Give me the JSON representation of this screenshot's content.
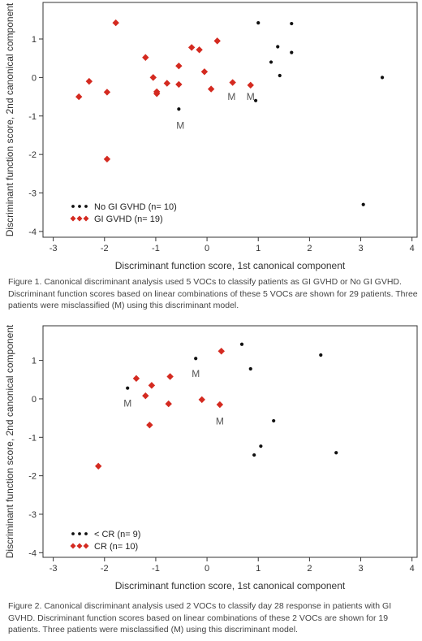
{
  "chart_data": [
    {
      "type": "scatter",
      "title": "",
      "xlabel": "Discriminant function score, 1st canonical component",
      "ylabel": "Discriminant function score, 2nd canonical component",
      "xlim": [
        -3.2,
        4.1
      ],
      "ylim": [
        -4.15,
        1.95
      ],
      "xticks": [
        -3,
        -2,
        -1,
        0,
        1,
        2,
        3,
        4
      ],
      "yticks": [
        -4,
        -3,
        -2,
        -1,
        0,
        1
      ],
      "grid": false,
      "legend_position": "bottom-left",
      "series": [
        {
          "name": "No GI GVHD (n= 10)",
          "marker": "dot",
          "color": "#111111",
          "points": [
            [
              1.0,
              1.42
            ],
            [
              1.65,
              1.4
            ],
            [
              1.38,
              0.8
            ],
            [
              1.65,
              0.65
            ],
            [
              1.25,
              0.4
            ],
            [
              1.42,
              0.05
            ],
            [
              0.95,
              -0.6
            ],
            [
              3.42,
              0.0
            ],
            [
              -0.55,
              -0.82
            ],
            [
              3.05,
              -3.3
            ]
          ]
        },
        {
          "name": "GI GVHD (n= 19)",
          "marker": "diamond",
          "color": "#d42a20",
          "points": [
            [
              -1.78,
              1.42
            ],
            [
              -2.5,
              -0.5
            ],
            [
              -2.3,
              -0.1
            ],
            [
              -1.95,
              -0.38
            ],
            [
              -1.95,
              -2.12
            ],
            [
              -1.2,
              0.52
            ],
            [
              -1.05,
              0.0
            ],
            [
              -0.98,
              -0.37
            ],
            [
              -0.98,
              -0.42
            ],
            [
              -0.78,
              -0.15
            ],
            [
              -0.55,
              -0.18
            ],
            [
              -0.55,
              0.3
            ],
            [
              -0.3,
              0.78
            ],
            [
              -0.15,
              0.72
            ],
            [
              -0.05,
              0.15
            ],
            [
              0.08,
              -0.3
            ],
            [
              0.2,
              0.95
            ],
            [
              0.5,
              -0.13
            ],
            [
              0.85,
              -0.2
            ]
          ]
        }
      ],
      "annotations": [
        {
          "text": "M",
          "x": -0.52,
          "y": -1.25
        },
        {
          "text": "M",
          "x": 0.48,
          "y": -0.5
        },
        {
          "text": "M",
          "x": 0.85,
          "y": -0.5
        }
      ]
    },
    {
      "type": "scatter",
      "title": "",
      "xlabel": "Discriminant function score, 1st canonical component",
      "ylabel": "Discriminant function score, 2nd canonical component",
      "xlim": [
        -3.2,
        4.1
      ],
      "ylim": [
        -4.12,
        1.9
      ],
      "xticks": [
        -3,
        -2,
        -1,
        0,
        1,
        2,
        3,
        4
      ],
      "yticks": [
        -4,
        -3,
        -2,
        -1,
        0,
        1
      ],
      "grid": false,
      "legend_position": "bottom-left",
      "series": [
        {
          "name": "< CR (n= 9)",
          "marker": "dot",
          "color": "#111111",
          "points": [
            [
              -1.55,
              0.28
            ],
            [
              -0.22,
              1.05
            ],
            [
              0.68,
              1.42
            ],
            [
              0.85,
              0.78
            ],
            [
              2.22,
              1.14
            ],
            [
              1.3,
              -0.57
            ],
            [
              1.05,
              -1.23
            ],
            [
              0.92,
              -1.46
            ],
            [
              2.52,
              -1.4
            ]
          ]
        },
        {
          "name": "CR (n= 10)",
          "marker": "diamond",
          "color": "#d42a20",
          "points": [
            [
              -1.38,
              0.53
            ],
            [
              -1.08,
              0.35
            ],
            [
              -1.2,
              0.08
            ],
            [
              -0.72,
              0.58
            ],
            [
              -0.75,
              -0.13
            ],
            [
              -1.12,
              -0.68
            ],
            [
              -2.12,
              -1.75
            ],
            [
              -0.1,
              -0.02
            ],
            [
              0.28,
              1.24
            ],
            [
              0.25,
              -0.15
            ]
          ]
        }
      ],
      "annotations": [
        {
          "text": "M",
          "x": -1.55,
          "y": -0.12
        },
        {
          "text": "M",
          "x": -0.22,
          "y": 0.65
        },
        {
          "text": "M",
          "x": 0.25,
          "y": -0.58
        }
      ]
    }
  ],
  "captions": {
    "figure1": "Figure 1. Canonical discriminant analysis used 5 VOCs to classify patients as GI GVHD or No GI GVHD. Discriminant function scores based on linear combinations of these 5 VOCs are shown for 29 patients. Three patients were misclassified (M) using this discriminant model.",
    "figure2": "Figure 2. Canonical discriminant analysis used 2 VOCs to classify day 28 response in patients with GI GVHD. Discriminant function scores based on linear combinations of these 2 VOCs are shown for 19 patients. Three patients were misclassified (M) using this discriminant model."
  }
}
